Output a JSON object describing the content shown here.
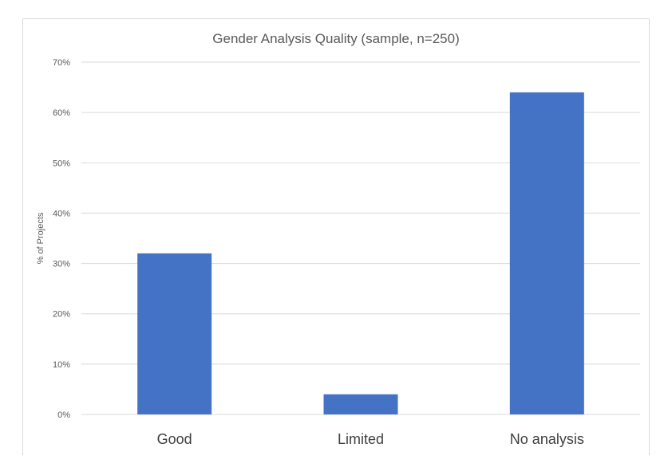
{
  "chart_data": {
    "type": "bar",
    "title": "Gender Analysis Quality (sample, n=250)",
    "xlabel": "",
    "ylabel": "% of Projects",
    "categories": [
      "Good",
      "Limited",
      "No analysis"
    ],
    "values": [
      32,
      4,
      64
    ],
    "ylim": [
      0,
      70
    ],
    "yticks": [
      0,
      10,
      20,
      30,
      40,
      50,
      60,
      70
    ],
    "ytick_labels": [
      "0%",
      "10%",
      "20%",
      "30%",
      "40%",
      "50%",
      "60%",
      "70%"
    ],
    "grid": true,
    "legend": "none",
    "bar_color": "#4472c4"
  }
}
